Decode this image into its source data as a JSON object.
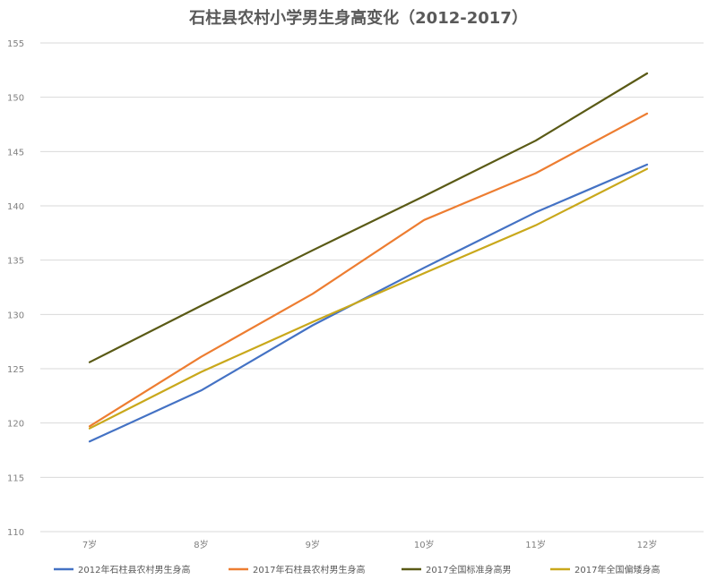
{
  "chart_data": {
    "type": "line",
    "title": "石柱县农村小学男生身高变化（2012-2017）",
    "categories": [
      "7岁",
      "8岁",
      "9岁",
      "10岁",
      "11岁",
      "12岁"
    ],
    "ylim": [
      110,
      155
    ],
    "yticks": [
      110,
      115,
      120,
      125,
      130,
      135,
      140,
      145,
      150,
      155
    ],
    "grid": true,
    "legend_position": "bottom",
    "series": [
      {
        "name": "2012年石柱县农村男生身高",
        "color": "#4472C4",
        "values": [
          118.3,
          123.0,
          129.0,
          134.3,
          139.4,
          143.8
        ]
      },
      {
        "name": "2017年石柱县农村男生身高",
        "color": "#ED7D31",
        "values": [
          119.7,
          126.1,
          131.9,
          138.7,
          143.0,
          148.5
        ]
      },
      {
        "name": "2017全国标准身高男",
        "color": "#5A5A16",
        "values": [
          125.6,
          130.8,
          135.9,
          140.9,
          146.0,
          152.2
        ]
      },
      {
        "name": "2017年全国偏矮身高",
        "color": "#C9A81B",
        "values": [
          119.5,
          124.7,
          129.3,
          133.8,
          138.2,
          143.4
        ]
      }
    ]
  }
}
